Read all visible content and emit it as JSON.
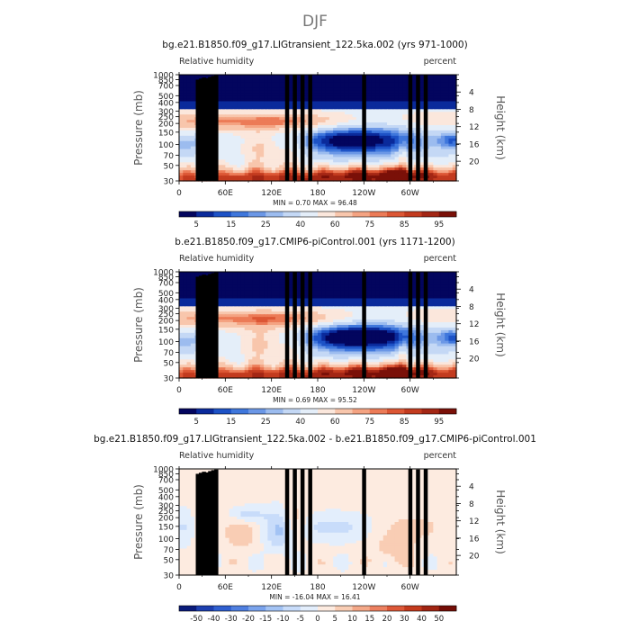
{
  "figure": {
    "season": "DJF"
  },
  "chart_data": [
    {
      "type": "heatmap",
      "title": "bg.e21.B1850.f09_g17.LIGtransient_122.5ka.002 (yrs 971-1000)",
      "left_label": "Relative humidity",
      "right_label": "percent",
      "ylabel": "Pressure (mb)",
      "y2label": "Height (km)",
      "x_ticks": [
        "0",
        "60E",
        "120E",
        "180",
        "120W",
        "60W"
      ],
      "x_tick_values": [
        0,
        60,
        120,
        180,
        240,
        300
      ],
      "xlim": [
        0,
        360
      ],
      "y_ticks": [
        "1000",
        "850",
        "700",
        "500",
        "400",
        "300",
        "250",
        "200",
        "150",
        "100",
        "70",
        "50",
        "30"
      ],
      "y_tick_values": [
        1000,
        850,
        700,
        500,
        400,
        300,
        250,
        200,
        150,
        100,
        70,
        50,
        30
      ],
      "ylim": [
        1000,
        30
      ],
      "y2_ticks": [
        "4",
        "8",
        "12",
        "16",
        "20"
      ],
      "y2_tick_values": [
        4,
        8,
        12,
        16,
        20
      ],
      "stats": "MIN =     0.70   MAX =    96.48",
      "min": 0.7,
      "max": 96.48,
      "colorbar_labels": [
        "5",
        "15",
        "25",
        "40",
        "60",
        "75",
        "85",
        "95"
      ],
      "colorbar_levels": [
        5,
        10,
        15,
        20,
        25,
        30,
        40,
        50,
        60,
        70,
        75,
        80,
        85,
        90,
        95
      ],
      "colorbar_colors": [
        "#03055e",
        "#0a2a9b",
        "#1d52c6",
        "#3f77dc",
        "#6b97e6",
        "#9cbcef",
        "#c4d8f5",
        "#e4eef9",
        "#fbe7dc",
        "#f8c6ac",
        "#f4a382",
        "#ec7b57",
        "#dc5634",
        "#c33b1f",
        "#a32614",
        "#7a1008"
      ]
    },
    {
      "type": "heatmap",
      "title": "b.e21.B1850.f09_g17.CMIP6-piControl.001 (yrs 1171-1200)",
      "left_label": "Relative humidity",
      "right_label": "percent",
      "ylabel": "Pressure (mb)",
      "y2label": "Height (km)",
      "x_ticks": [
        "0",
        "60E",
        "120E",
        "180",
        "120W",
        "60W"
      ],
      "x_tick_values": [
        0,
        60,
        120,
        180,
        240,
        300
      ],
      "xlim": [
        0,
        360
      ],
      "y_ticks": [
        "1000",
        "850",
        "700",
        "500",
        "400",
        "300",
        "250",
        "200",
        "150",
        "100",
        "70",
        "50",
        "30"
      ],
      "y_tick_values": [
        1000,
        850,
        700,
        500,
        400,
        300,
        250,
        200,
        150,
        100,
        70,
        50,
        30
      ],
      "ylim": [
        1000,
        30
      ],
      "y2_ticks": [
        "4",
        "8",
        "12",
        "16",
        "20"
      ],
      "y2_tick_values": [
        4,
        8,
        12,
        16,
        20
      ],
      "stats": "MIN =     0.69   MAX =    95.52",
      "min": 0.69,
      "max": 95.52,
      "colorbar_labels": [
        "5",
        "15",
        "25",
        "40",
        "60",
        "75",
        "85",
        "95"
      ],
      "colorbar_levels": [
        5,
        10,
        15,
        20,
        25,
        30,
        40,
        50,
        60,
        70,
        75,
        80,
        85,
        90,
        95
      ],
      "colorbar_colors": [
        "#03055e",
        "#0a2a9b",
        "#1d52c6",
        "#3f77dc",
        "#6b97e6",
        "#9cbcef",
        "#c4d8f5",
        "#e4eef9",
        "#fbe7dc",
        "#f8c6ac",
        "#f4a382",
        "#ec7b57",
        "#dc5634",
        "#c33b1f",
        "#a32614",
        "#7a1008"
      ]
    },
    {
      "type": "heatmap",
      "title": "bg.e21.B1850.f09_g17.LIGtransient_122.5ka.002 - b.e21.B1850.f09_g17.CMIP6-piControl.001",
      "left_label": "Relative humidity",
      "right_label": "percent",
      "ylabel": "Pressure (mb)",
      "y2label": "Height (km)",
      "x_ticks": [
        "0",
        "60E",
        "120E",
        "180",
        "120W",
        "60W"
      ],
      "x_tick_values": [
        0,
        60,
        120,
        180,
        240,
        300
      ],
      "xlim": [
        0,
        360
      ],
      "y_ticks": [
        "1000",
        "850",
        "700",
        "500",
        "400",
        "300",
        "250",
        "200",
        "150",
        "100",
        "70",
        "50",
        "30"
      ],
      "y_tick_values": [
        1000,
        850,
        700,
        500,
        400,
        300,
        250,
        200,
        150,
        100,
        70,
        50,
        30
      ],
      "ylim": [
        1000,
        30
      ],
      "y2_ticks": [
        "4",
        "8",
        "12",
        "16",
        "20"
      ],
      "y2_tick_values": [
        4,
        8,
        12,
        16,
        20
      ],
      "stats": "MIN =   -16.04   MAX =    16.41",
      "min": -16.04,
      "max": 16.41,
      "colorbar_labels": [
        "-50",
        "-40",
        "-30",
        "-20",
        "-15",
        "-10",
        "-5",
        "0",
        "5",
        "10",
        "15",
        "20",
        "30",
        "40",
        "50"
      ],
      "colorbar_levels": [
        -50,
        -40,
        -30,
        -20,
        -15,
        -10,
        -5,
        0,
        5,
        10,
        15,
        20,
        30,
        40,
        50
      ],
      "colorbar_colors": [
        "#0a1b7a",
        "#1d3fb0",
        "#2f5fd0",
        "#4f7fe0",
        "#7aa3ec",
        "#a3c3f4",
        "#c8dcfa",
        "#e3eefc",
        "#fdebe0",
        "#f9cdb4",
        "#f4a888",
        "#ec8060",
        "#dd5838",
        "#c43a1d",
        "#a12412",
        "#740d06"
      ]
    }
  ]
}
